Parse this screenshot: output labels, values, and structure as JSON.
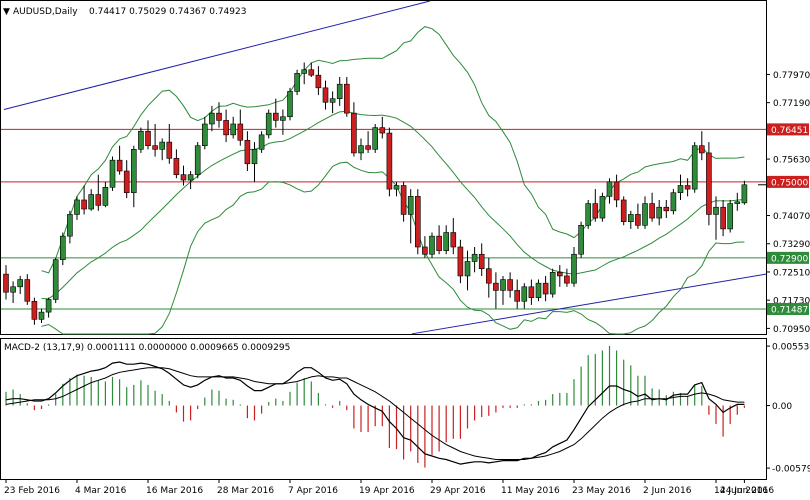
{
  "window": {
    "symbol_title": "AUDUSD,Daily",
    "ohlc_text": "0.74417 0.75029 0.74367 0.74923"
  },
  "indicator": {
    "macd_title": "MACD-2 (13,17,9) 0.0001111 0.0000000 0.0009665 0.0009295"
  },
  "colors": {
    "bull": "#2e8b3a",
    "bear": "#cc1f1f",
    "level_red": "#cc1f1f",
    "level_green": "#2e8b3a",
    "channel": "#1f1fa8",
    "bollinger": "#2e8b3a",
    "macd_line": "#000000",
    "signal_line": "#000000"
  },
  "chart_data": {
    "type": "candlestick",
    "x_axis_labels": [
      "23 Feb 2016",
      "4 Mar 2016",
      "16 Mar 2016",
      "28 Mar 2016",
      "7 Apr 2016",
      "19 Apr 2016",
      "29 Apr 2016",
      "11 May 2016",
      "23 May 2016",
      "2 Jun 2016",
      "14 Jun 2016",
      "24 Jun 2016"
    ],
    "price_axis": {
      "ylim": [
        0.70795,
        0.8
      ],
      "ticks": [
        "0.77970",
        "0.77190",
        "0.76451",
        "0.75630",
        "0.75000",
        "0.74070",
        "0.73290",
        "0.72900",
        "0.72510",
        "0.71730",
        "0.71487",
        "0.70950"
      ]
    },
    "levels": [
      {
        "value": 0.76451,
        "label": "0.76451",
        "color": "red"
      },
      {
        "value": 0.75,
        "label": "0.75000",
        "color": "red"
      },
      {
        "value": 0.729,
        "label": "0.72900",
        "color": "green"
      },
      {
        "value": 0.71487,
        "label": "0.71487",
        "color": "green"
      }
    ],
    "candles": [
      [
        0.7245,
        0.727,
        0.7175,
        0.7195
      ],
      [
        0.7195,
        0.7225,
        0.7165,
        0.721
      ],
      [
        0.721,
        0.724,
        0.719,
        0.723
      ],
      [
        0.723,
        0.7245,
        0.716,
        0.717
      ],
      [
        0.717,
        0.718,
        0.7105,
        0.712
      ],
      [
        0.712,
        0.715,
        0.711,
        0.714
      ],
      [
        0.714,
        0.718,
        0.7125,
        0.7175
      ],
      [
        0.7175,
        0.729,
        0.7165,
        0.7285
      ],
      [
        0.7285,
        0.736,
        0.727,
        0.735
      ],
      [
        0.735,
        0.742,
        0.733,
        0.741
      ],
      [
        0.741,
        0.746,
        0.7395,
        0.745
      ],
      [
        0.745,
        0.749,
        0.741,
        0.7425
      ],
      [
        0.7425,
        0.748,
        0.742,
        0.7465
      ],
      [
        0.7465,
        0.752,
        0.742,
        0.7435
      ],
      [
        0.7435,
        0.75,
        0.743,
        0.7485
      ],
      [
        0.7485,
        0.757,
        0.7475,
        0.756
      ],
      [
        0.756,
        0.76,
        0.752,
        0.753
      ],
      [
        0.753,
        0.756,
        0.7455,
        0.747
      ],
      [
        0.747,
        0.76,
        0.743,
        0.759
      ],
      [
        0.759,
        0.765,
        0.758,
        0.764
      ],
      [
        0.764,
        0.767,
        0.759,
        0.76
      ],
      [
        0.76,
        0.766,
        0.757,
        0.759
      ],
      [
        0.759,
        0.762,
        0.756,
        0.761
      ],
      [
        0.761,
        0.766,
        0.755,
        0.7565
      ],
      [
        0.7565,
        0.759,
        0.751,
        0.752
      ],
      [
        0.752,
        0.7545,
        0.749,
        0.7505
      ],
      [
        0.7505,
        0.753,
        0.748,
        0.752
      ],
      [
        0.752,
        0.761,
        0.751,
        0.76
      ],
      [
        0.76,
        0.768,
        0.759,
        0.766
      ],
      [
        0.766,
        0.771,
        0.764,
        0.769
      ],
      [
        0.769,
        0.772,
        0.765,
        0.767
      ],
      [
        0.767,
        0.77,
        0.761,
        0.763
      ],
      [
        0.763,
        0.768,
        0.762,
        0.766
      ],
      [
        0.766,
        0.77,
        0.76,
        0.7615
      ],
      [
        0.7615,
        0.764,
        0.753,
        0.755
      ],
      [
        0.755,
        0.761,
        0.75,
        0.759
      ],
      [
        0.759,
        0.764,
        0.758,
        0.763
      ],
      [
        0.763,
        0.77,
        0.762,
        0.769
      ],
      [
        0.769,
        0.773,
        0.765,
        0.767
      ],
      [
        0.767,
        0.77,
        0.763,
        0.768
      ],
      [
        0.768,
        0.776,
        0.767,
        0.775
      ],
      [
        0.775,
        0.781,
        0.774,
        0.78
      ],
      [
        0.78,
        0.783,
        0.777,
        0.781
      ],
      [
        0.781,
        0.783,
        0.779,
        0.7795
      ],
      [
        0.7795,
        0.782,
        0.774,
        0.776
      ],
      [
        0.776,
        0.778,
        0.77,
        0.772
      ],
      [
        0.772,
        0.775,
        0.769,
        0.773
      ],
      [
        0.773,
        0.779,
        0.771,
        0.777
      ],
      [
        0.777,
        0.779,
        0.768,
        0.769
      ],
      [
        0.769,
        0.772,
        0.757,
        0.758
      ],
      [
        0.758,
        0.762,
        0.756,
        0.76
      ],
      [
        0.76,
        0.764,
        0.758,
        0.759
      ],
      [
        0.759,
        0.766,
        0.758,
        0.765
      ],
      [
        0.765,
        0.768,
        0.762,
        0.7635
      ],
      [
        0.7635,
        0.765,
        0.746,
        0.748
      ],
      [
        0.748,
        0.75,
        0.746,
        0.749
      ],
      [
        0.749,
        0.75,
        0.739,
        0.741
      ],
      [
        0.741,
        0.748,
        0.733,
        0.746
      ],
      [
        0.746,
        0.748,
        0.73,
        0.732
      ],
      [
        0.732,
        0.735,
        0.729,
        0.73
      ],
      [
        0.73,
        0.736,
        0.729,
        0.735
      ],
      [
        0.735,
        0.738,
        0.73,
        0.731
      ],
      [
        0.731,
        0.738,
        0.73,
        0.736
      ],
      [
        0.736,
        0.74,
        0.73,
        0.732
      ],
      [
        0.732,
        0.734,
        0.722,
        0.724
      ],
      [
        0.724,
        0.731,
        0.72,
        0.728
      ],
      [
        0.728,
        0.732,
        0.725,
        0.73
      ],
      [
        0.73,
        0.733,
        0.724,
        0.726
      ],
      [
        0.726,
        0.729,
        0.718,
        0.722
      ],
      [
        0.722,
        0.725,
        0.715,
        0.72
      ],
      [
        0.72,
        0.724,
        0.716,
        0.723
      ],
      [
        0.723,
        0.725,
        0.718,
        0.72
      ],
      [
        0.72,
        0.723,
        0.715,
        0.717
      ],
      [
        0.717,
        0.722,
        0.715,
        0.721
      ],
      [
        0.721,
        0.723,
        0.716,
        0.718
      ],
      [
        0.718,
        0.723,
        0.717,
        0.722
      ],
      [
        0.722,
        0.724,
        0.717,
        0.719
      ],
      [
        0.719,
        0.726,
        0.718,
        0.725
      ],
      [
        0.725,
        0.727,
        0.721,
        0.724
      ],
      [
        0.724,
        0.726,
        0.721,
        0.722
      ],
      [
        0.722,
        0.732,
        0.721,
        0.73
      ],
      [
        0.73,
        0.739,
        0.729,
        0.738
      ],
      [
        0.738,
        0.745,
        0.737,
        0.744
      ],
      [
        0.744,
        0.748,
        0.739,
        0.74
      ],
      [
        0.74,
        0.747,
        0.739,
        0.746
      ],
      [
        0.746,
        0.751,
        0.744,
        0.75
      ],
      [
        0.75,
        0.752,
        0.743,
        0.745
      ],
      [
        0.745,
        0.746,
        0.738,
        0.739
      ],
      [
        0.739,
        0.742,
        0.737,
        0.741
      ],
      [
        0.741,
        0.744,
        0.737,
        0.738
      ],
      [
        0.738,
        0.746,
        0.737,
        0.744
      ],
      [
        0.744,
        0.747,
        0.739,
        0.74
      ],
      [
        0.74,
        0.745,
        0.738,
        0.743
      ],
      [
        0.743,
        0.745,
        0.74,
        0.742
      ],
      [
        0.742,
        0.748,
        0.741,
        0.747
      ],
      [
        0.747,
        0.752,
        0.745,
        0.749
      ],
      [
        0.749,
        0.751,
        0.746,
        0.748
      ],
      [
        0.748,
        0.761,
        0.747,
        0.76
      ],
      [
        0.76,
        0.764,
        0.756,
        0.758
      ],
      [
        0.758,
        0.761,
        0.738,
        0.741
      ],
      [
        0.741,
        0.746,
        0.734,
        0.743
      ],
      [
        0.743,
        0.745,
        0.735,
        0.737
      ],
      [
        0.737,
        0.745,
        0.736,
        0.744
      ],
      [
        0.744,
        0.747,
        0.742,
        0.7445
      ],
      [
        0.7442,
        0.7503,
        0.7437,
        0.7492
      ]
    ],
    "macd": {
      "axis_ticks": [
        "0.0055303",
        "0.00",
        "-0.0057995"
      ],
      "ylim": [
        -0.0064,
        0.0058
      ],
      "histogram": [
        0.0012,
        0.0014,
        0.001,
        0.0002,
        -0.0004,
        -0.0003,
        0.0001,
        0.001,
        0.0019,
        0.0024,
        0.0027,
        0.0026,
        0.0025,
        0.0022,
        0.0021,
        0.0025,
        0.0023,
        0.0016,
        0.0018,
        0.0022,
        0.0018,
        0.0013,
        0.001,
        0.0004,
        -0.0006,
        -0.0014,
        -0.0013,
        -0.0003,
        0.0007,
        0.0014,
        0.0013,
        0.0006,
        0.0005,
        0.0001,
        -0.0011,
        -0.0013,
        -0.0007,
        0.0003,
        0.0006,
        0.0004,
        0.0012,
        0.002,
        0.0024,
        0.0021,
        0.0011,
        0.0001,
        -0.0002,
        0.0004,
        -0.0004,
        -0.002,
        -0.0023,
        -0.0023,
        -0.0018,
        -0.0018,
        -0.0037,
        -0.0038,
        -0.0047,
        -0.004,
        -0.005,
        -0.0054,
        -0.0043,
        -0.004,
        -0.0032,
        -0.0029,
        -0.0029,
        -0.002,
        -0.0013,
        -0.001,
        -0.0009,
        -0.0006,
        -0.0002,
        -0.0002,
        -0.0002,
        0.0001,
        0.0001,
        0.0004,
        0.0005,
        0.001,
        0.0011,
        0.0011,
        0.0023,
        0.0034,
        0.0044,
        0.0045,
        0.0048,
        0.0052,
        0.0048,
        0.004,
        0.0035,
        0.0026,
        0.0026,
        0.0015,
        0.0014,
        0.0009,
        0.0012,
        0.0011,
        0.0008,
        0.0018,
        0.0017,
        -0.0008,
        -0.0016,
        -0.0027,
        -0.0016,
        -0.0008,
        -0.0002
      ],
      "macd_line": [
        0.0005,
        0.0006,
        0.0006,
        0.0005,
        0.0004,
        0.0004,
        0.0006,
        0.0011,
        0.0017,
        0.0022,
        0.0026,
        0.0028,
        0.003,
        0.0031,
        0.0033,
        0.0037,
        0.0038,
        0.0036,
        0.0036,
        0.0037,
        0.0036,
        0.0034,
        0.0032,
        0.0028,
        0.0023,
        0.0018,
        0.0016,
        0.0018,
        0.0022,
        0.0025,
        0.0026,
        0.0024,
        0.0024,
        0.0022,
        0.0017,
        0.0013,
        0.0013,
        0.0016,
        0.0019,
        0.0019,
        0.0023,
        0.0029,
        0.0033,
        0.0033,
        0.0029,
        0.0024,
        0.0022,
        0.0023,
        0.0019,
        0.001,
        0.0005,
        0.0001,
        -0.0002,
        -0.0005,
        -0.0014,
        -0.002,
        -0.0028,
        -0.003,
        -0.0036,
        -0.0042,
        -0.0044,
        -0.0046,
        -0.0047,
        -0.0049,
        -0.0051,
        -0.005,
        -0.0049,
        -0.0049,
        -0.005,
        -0.0049,
        -0.0048,
        -0.0048,
        -0.0048,
        -0.0046,
        -0.0046,
        -0.0043,
        -0.0041,
        -0.0036,
        -0.0033,
        -0.003,
        -0.0021,
        -0.0011,
        -0.0001,
        0.0005,
        0.0011,
        0.0017,
        0.0017,
        0.0014,
        0.0012,
        0.0008,
        0.001,
        0.0005,
        0.0006,
        0.0005,
        0.0009,
        0.001,
        0.001,
        0.0018,
        0.002,
        0.0006,
        0.0001,
        -0.0006,
        -0.0002,
        0.0001,
        0.0001
      ],
      "signal_line": [
        0.0001,
        0.0002,
        0.0003,
        0.0004,
        0.0005,
        0.0005,
        0.0005,
        0.0006,
        0.0008,
        0.0011,
        0.0014,
        0.0017,
        0.002,
        0.0022,
        0.0024,
        0.0027,
        0.0029,
        0.003,
        0.0031,
        0.0032,
        0.0033,
        0.0033,
        0.0033,
        0.0032,
        0.003,
        0.0028,
        0.0026,
        0.0025,
        0.0025,
        0.0025,
        0.0025,
        0.0025,
        0.0025,
        0.0024,
        0.0023,
        0.0021,
        0.002,
        0.0019,
        0.0019,
        0.0019,
        0.002,
        0.0021,
        0.0023,
        0.0025,
        0.0026,
        0.0025,
        0.0025,
        0.0024,
        0.0024,
        0.0021,
        0.0018,
        0.0015,
        0.0012,
        0.0008,
        0.0004,
        -0.0001,
        -0.0006,
        -0.0011,
        -0.0016,
        -0.0021,
        -0.0026,
        -0.003,
        -0.0034,
        -0.0037,
        -0.004,
        -0.0042,
        -0.0044,
        -0.0045,
        -0.0046,
        -0.0047,
        -0.0047,
        -0.0047,
        -0.0047,
        -0.0047,
        -0.0046,
        -0.0045,
        -0.0044,
        -0.0042,
        -0.004,
        -0.0037,
        -0.0034,
        -0.0029,
        -0.0023,
        -0.0017,
        -0.0011,
        -0.0006,
        -0.0002,
        0.0001,
        0.0003,
        0.0004,
        0.0006,
        0.0006,
        0.0006,
        0.0006,
        0.0007,
        0.0008,
        0.0008,
        0.001,
        0.0011,
        0.001,
        0.0008,
        0.0005,
        0.0004,
        0.0003,
        0.0003
      ]
    }
  }
}
